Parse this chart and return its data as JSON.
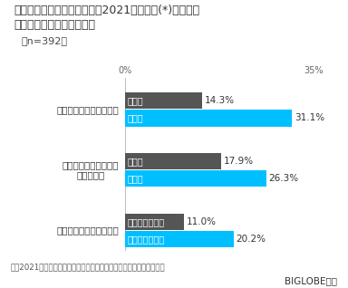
{
  "title_line1": "ワクチン接種に対する意識で2021年初め頃(*)と比べて",
  "title_line2": "変化したこと（複数回答）",
  "sample_size": "（n=392）",
  "axis_label_left": "0%",
  "axis_label_right": "35%",
  "groups": [
    {
      "label": "ワクチン接種効果の安心",
      "bars": [
        {
          "label": "減った",
          "value": 14.3,
          "color": "#555555"
        },
        {
          "label": "増した",
          "value": 31.1,
          "color": "#00BFFF"
        }
      ]
    },
    {
      "label": "ワクチン接種に対する\n不安・恐怖",
      "bars": [
        {
          "label": "増した",
          "value": 17.9,
          "color": "#555555"
        },
        {
          "label": "減った",
          "value": 26.3,
          "color": "#00BFFF"
        }
      ]
    },
    {
      "label": "ワクチン接種への積極性",
      "bars": [
        {
          "label": "消極的になった",
          "value": 11.0,
          "color": "#555555"
        },
        {
          "label": "積極的になった",
          "value": 20.2,
          "color": "#00BFFF"
        }
      ]
    }
  ],
  "xlim": [
    0,
    35
  ],
  "footnote": "＊：2021年度初め頃は、新型コロナワクチンの接種が開始された時期",
  "source": "BIGLOBE調べ",
  "bar_height": 0.32,
  "gray_color": "#555555",
  "blue_color": "#00BFFF",
  "bg_color": "#FFFFFF",
  "bar_label_fontsize": 7.0,
  "value_label_fontsize": 7.5,
  "title_fontsize": 9.0,
  "group_label_fontsize": 7.5,
  "footnote_fontsize": 6.2,
  "source_fontsize": 7.5,
  "sample_fontsize": 8.0,
  "axis_tick_fontsize": 7.0
}
